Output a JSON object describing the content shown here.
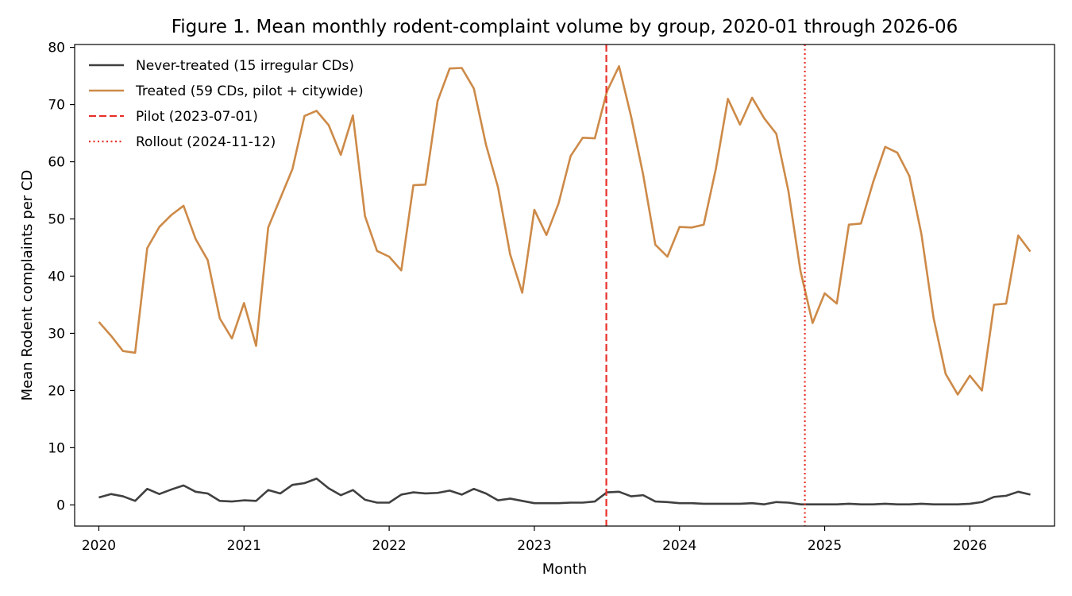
{
  "chart_data": {
    "type": "line",
    "title": "Figure 1. Mean monthly rodent-complaint volume by group, 2020-01 through 2026-06",
    "xlabel": "Month",
    "ylabel": "Mean Rodent complaints per CD",
    "x_start": "2020-01",
    "x_end": "2026-06",
    "xlim": [
      "2019-11",
      "2026-08"
    ],
    "ylim": [
      -3.7,
      80.5
    ],
    "xticks": [
      "2020",
      "2021",
      "2022",
      "2023",
      "2024",
      "2025",
      "2026"
    ],
    "yticks": [
      0,
      10,
      20,
      30,
      40,
      50,
      60,
      70,
      80
    ],
    "grid": false,
    "legend_position": "top-left",
    "series": [
      {
        "name": "Never-treated (15 irregular CDs)",
        "color": "#404040",
        "style": "solid",
        "values": [
          1.3,
          1.9,
          1.5,
          0.7,
          2.8,
          1.9,
          2.7,
          3.4,
          2.3,
          2.0,
          0.7,
          0.6,
          0.8,
          0.7,
          2.6,
          2.0,
          3.5,
          3.8,
          4.6,
          2.9,
          1.7,
          2.6,
          0.9,
          0.4,
          0.4,
          1.8,
          2.2,
          2.0,
          2.1,
          2.5,
          1.8,
          2.8,
          2.0,
          0.8,
          1.1,
          0.7,
          0.3,
          0.3,
          0.3,
          0.4,
          0.4,
          0.6,
          2.2,
          2.3,
          1.5,
          1.7,
          0.6,
          0.5,
          0.3,
          0.3,
          0.2,
          0.2,
          0.2,
          0.2,
          0.3,
          0.1,
          0.5,
          0.4,
          0.1,
          0.1,
          0.1,
          0.1,
          0.2,
          0.1,
          0.1,
          0.2,
          0.1,
          0.1,
          0.2,
          0.1,
          0.1,
          0.1,
          0.2,
          0.5,
          1.4,
          1.6,
          2.3,
          1.8
        ]
      },
      {
        "name": "Treated (59 CDs, pilot + citywide)",
        "color": "#cd8a48",
        "style": "solid",
        "values": [
          32.0,
          29.6,
          26.9,
          26.6,
          44.9,
          48.6,
          50.7,
          52.3,
          46.5,
          42.8,
          32.6,
          29.1,
          35.3,
          27.8,
          48.5,
          53.6,
          58.7,
          68.0,
          68.9,
          66.4,
          61.2,
          68.1,
          50.5,
          44.4,
          43.4,
          41.0,
          55.9,
          56.0,
          70.6,
          76.3,
          76.4,
          72.8,
          63.0,
          55.5,
          43.8,
          37.1,
          51.6,
          47.2,
          52.7,
          61.0,
          64.2,
          64.1,
          72.3,
          76.7,
          67.9,
          57.7,
          45.5,
          43.4,
          48.6,
          48.5,
          49.0,
          58.7,
          71.0,
          66.5,
          71.2,
          67.6,
          64.9,
          54.9,
          40.9,
          31.8,
          37.0,
          35.2,
          49.0,
          49.2,
          56.4,
          62.6,
          61.6,
          57.5,
          47.3,
          32.7,
          22.9,
          19.3,
          22.6,
          20.0,
          35.0,
          35.2,
          47.1,
          44.3
        ]
      }
    ],
    "events": [
      {
        "name": "Pilot (2023-07-01)",
        "date": "2023-07-01",
        "color": "#e8302a",
        "style": "dashed"
      },
      {
        "name": "Rollout (2024-11-12)",
        "date": "2024-11-12",
        "color": "#e8302a",
        "style": "dotted"
      }
    ]
  }
}
